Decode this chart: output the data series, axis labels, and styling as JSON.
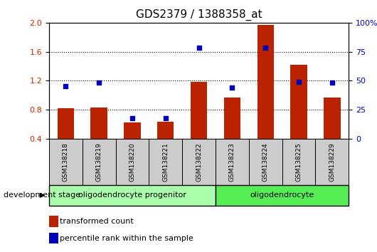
{
  "title": "GDS2379 / 1388358_at",
  "samples": [
    "GSM138218",
    "GSM138219",
    "GSM138220",
    "GSM138221",
    "GSM138222",
    "GSM138223",
    "GSM138224",
    "GSM138225",
    "GSM138229"
  ],
  "transformed_count": [
    0.82,
    0.83,
    0.62,
    0.63,
    1.18,
    0.97,
    1.97,
    1.42,
    0.97
  ],
  "percentile_rank_left": [
    1.12,
    1.17,
    0.68,
    0.68,
    1.65,
    1.1,
    1.65,
    1.18,
    1.17
  ],
  "ylim_left": [
    0.4,
    2.0
  ],
  "ylim_right": [
    0,
    100
  ],
  "yticks_left": [
    0.4,
    0.8,
    1.2,
    1.6,
    2.0
  ],
  "yticks_right": [
    0,
    25,
    50,
    75,
    100
  ],
  "ytick_labels_right": [
    "0",
    "25",
    "50",
    "75",
    "100%"
  ],
  "bar_color": "#bb2200",
  "dot_color": "#0000bb",
  "bg_color": "#ffffff",
  "group1_label": "oligodendrocyte progenitor",
  "group2_label": "oligodendrocyte",
  "group1_indices": [
    0,
    1,
    2,
    3,
    4
  ],
  "group2_indices": [
    5,
    6,
    7,
    8
  ],
  "stage_label": "development stage",
  "legend1": "transformed count",
  "legend2": "percentile rank within the sample",
  "left_tick_color": "#cc2200",
  "right_tick_color": "#0000cc",
  "group_bg1": "#aaffaa",
  "group_bg2": "#55ee55",
  "sample_bg": "#cccccc",
  "title_fontsize": 11,
  "tick_fontsize": 8,
  "bar_width": 0.5,
  "grid_yticks": [
    0.8,
    1.2,
    1.6
  ]
}
